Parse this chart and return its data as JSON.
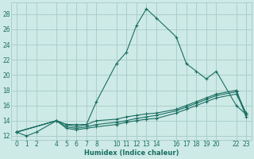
{
  "xlabel": "Humidex (Indice chaleur)",
  "background_color": "#ceeae6",
  "grid_color": "#aacfcb",
  "line_color": "#1a6e62",
  "xlim": [
    -0.5,
    23.5
  ],
  "ylim": [
    11.5,
    29.5
  ],
  "xticks": [
    0,
    1,
    2,
    4,
    5,
    6,
    7,
    8,
    10,
    11,
    12,
    13,
    14,
    16,
    17,
    18,
    19,
    20,
    22,
    23
  ],
  "yticks": [
    12,
    14,
    16,
    18,
    20,
    22,
    24,
    26,
    28
  ],
  "series1_x": [
    0,
    1,
    2,
    4,
    5,
    6,
    7,
    8,
    10,
    11,
    12,
    13,
    14,
    16,
    17,
    18,
    19,
    20,
    22,
    23
  ],
  "series1_y": [
    12.5,
    12.0,
    12.5,
    14.0,
    13.5,
    13.2,
    13.5,
    16.5,
    21.5,
    23.0,
    26.5,
    28.7,
    27.5,
    25.0,
    21.5,
    20.5,
    19.5,
    20.5,
    16.0,
    14.8
  ],
  "series2_x": [
    0,
    4,
    5,
    6,
    7,
    8,
    10,
    11,
    12,
    13,
    14,
    16,
    17,
    18,
    19,
    20,
    22,
    23
  ],
  "series2_y": [
    12.5,
    14.0,
    13.5,
    13.5,
    13.5,
    14.0,
    14.2,
    14.5,
    14.7,
    14.9,
    15.0,
    15.5,
    16.0,
    16.5,
    17.0,
    17.5,
    18.0,
    14.8
  ],
  "series3_x": [
    0,
    4,
    5,
    6,
    7,
    8,
    10,
    11,
    12,
    13,
    14,
    16,
    17,
    18,
    19,
    20,
    22,
    23
  ],
  "series3_y": [
    12.5,
    14.0,
    13.2,
    13.0,
    13.2,
    13.5,
    13.8,
    14.0,
    14.3,
    14.5,
    14.7,
    15.3,
    15.8,
    16.3,
    16.8,
    17.3,
    17.8,
    14.5
  ],
  "series4_x": [
    0,
    4,
    5,
    6,
    7,
    8,
    10,
    11,
    12,
    13,
    14,
    16,
    17,
    18,
    19,
    20,
    22,
    23
  ],
  "series4_y": [
    12.5,
    14.0,
    13.0,
    12.8,
    13.0,
    13.2,
    13.5,
    13.8,
    14.0,
    14.2,
    14.3,
    15.0,
    15.5,
    16.0,
    16.5,
    17.0,
    17.5,
    15.0
  ]
}
